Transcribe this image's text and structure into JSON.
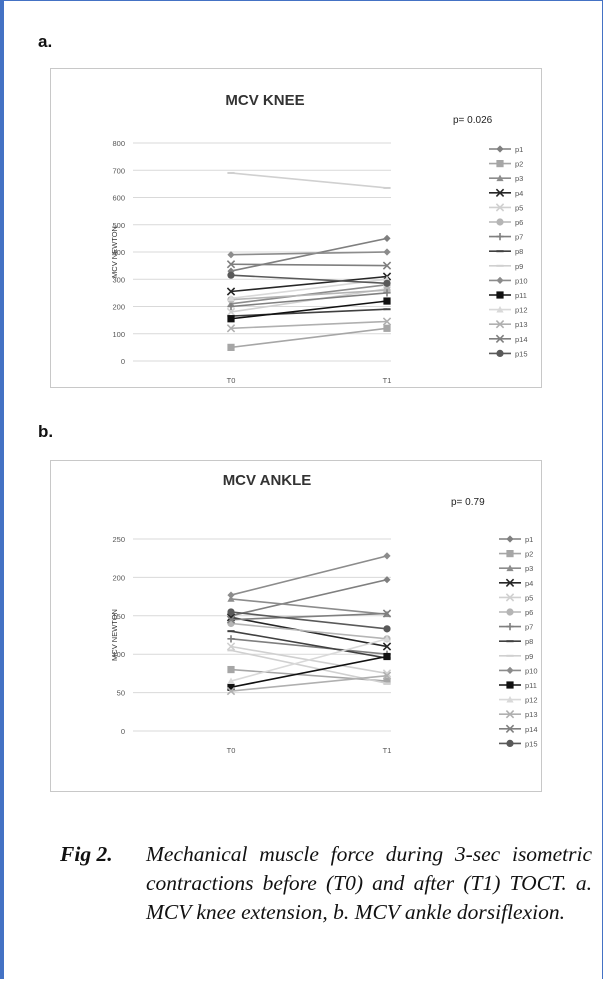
{
  "panels": {
    "a_label": "a.",
    "b_label": "b."
  },
  "caption": {
    "fig_label": "Fig 2.",
    "text": "Mechanical muscle force during 3-sec isometric contractions before (T0) and after (T1) TOCT. a. MCV knee extension, b. MCV ankle dorsiflexion."
  },
  "colors": {
    "border": "#4472c4",
    "grid": "#d9d9d9"
  },
  "chart_data": [
    {
      "type": "line",
      "title": "MCV KNEE",
      "annotation": "p= 0.026",
      "ylabel": "MCV NEWTON",
      "xlabel": "",
      "categories": [
        "T0",
        "T1"
      ],
      "ylim": [
        0,
        800
      ],
      "yticks": [
        "0",
        "100",
        "200",
        "300",
        "400",
        "500",
        "600",
        "700",
        "800"
      ],
      "grid": true,
      "legend": "right",
      "series": [
        {
          "name": "p1",
          "values": [
            330,
            450
          ],
          "color": "#7f7f7f",
          "marker": "diamond"
        },
        {
          "name": "p2",
          "values": [
            50,
            120
          ],
          "color": "#a6a6a6",
          "marker": "square"
        },
        {
          "name": "p3",
          "values": [
            210,
            280
          ],
          "color": "#8c8c8c",
          "marker": "triangle"
        },
        {
          "name": "p4",
          "values": [
            255,
            310
          ],
          "color": "#262626",
          "marker": "x"
        },
        {
          "name": "p5",
          "values": [
            180,
            265
          ],
          "color": "#d0d0d0",
          "marker": "x"
        },
        {
          "name": "p6",
          "values": [
            225,
            260
          ],
          "color": "#b5b5b5",
          "marker": "circle"
        },
        {
          "name": "p7",
          "values": [
            200,
            250
          ],
          "color": "#7f7f7f",
          "marker": "plus"
        },
        {
          "name": "p8",
          "values": [
            165,
            190
          ],
          "color": "#404040",
          "marker": "dash"
        },
        {
          "name": "p9",
          "values": [
            690,
            635
          ],
          "color": "#d0d0d0",
          "marker": "dash"
        },
        {
          "name": "p10",
          "values": [
            390,
            400
          ],
          "color": "#8c8c8c",
          "marker": "diamond"
        },
        {
          "name": "p11",
          "values": [
            155,
            220
          ],
          "color": "#111111",
          "marker": "square"
        },
        {
          "name": "p12",
          "values": [
            230,
            300
          ],
          "color": "#d9d9d9",
          "marker": "triangle"
        },
        {
          "name": "p13",
          "values": [
            120,
            145
          ],
          "color": "#b0b0b0",
          "marker": "x"
        },
        {
          "name": "p14",
          "values": [
            355,
            350
          ],
          "color": "#7f7f7f",
          "marker": "x"
        },
        {
          "name": "p15",
          "values": [
            315,
            285
          ],
          "color": "#595959",
          "marker": "circle"
        }
      ]
    },
    {
      "type": "line",
      "title": "MCV ANKLE",
      "annotation": "p= 0.79",
      "ylabel": "MCV NEWTON",
      "xlabel": "",
      "categories": [
        "T0",
        "T1"
      ],
      "ylim": [
        0,
        250
      ],
      "yticks": [
        "0",
        "50",
        "100",
        "150",
        "200",
        "250"
      ],
      "grid": true,
      "legend": "right",
      "series": [
        {
          "name": "p1",
          "values": [
            150,
            197
          ],
          "color": "#7f7f7f",
          "marker": "diamond"
        },
        {
          "name": "p2",
          "values": [
            80,
            65
          ],
          "color": "#a6a6a6",
          "marker": "square"
        },
        {
          "name": "p3",
          "values": [
            172,
            152
          ],
          "color": "#8c8c8c",
          "marker": "triangle"
        },
        {
          "name": "p4",
          "values": [
            148,
            110
          ],
          "color": "#262626",
          "marker": "x"
        },
        {
          "name": "p5",
          "values": [
            110,
            75
          ],
          "color": "#d0d0d0",
          "marker": "x"
        },
        {
          "name": "p6",
          "values": [
            140,
            120
          ],
          "color": "#b5b5b5",
          "marker": "circle"
        },
        {
          "name": "p7",
          "values": [
            120,
            100
          ],
          "color": "#7f7f7f",
          "marker": "plus"
        },
        {
          "name": "p8",
          "values": [
            130,
            95
          ],
          "color": "#404040",
          "marker": "dash"
        },
        {
          "name": "p9",
          "values": [
            105,
            62
          ],
          "color": "#d0d0d0",
          "marker": "dash"
        },
        {
          "name": "p10",
          "values": [
            177,
            228
          ],
          "color": "#8c8c8c",
          "marker": "diamond"
        },
        {
          "name": "p11",
          "values": [
            57,
            97
          ],
          "color": "#111111",
          "marker": "square"
        },
        {
          "name": "p12",
          "values": [
            65,
            120
          ],
          "color": "#d9d9d9",
          "marker": "triangle"
        },
        {
          "name": "p13",
          "values": [
            52,
            72
          ],
          "color": "#b0b0b0",
          "marker": "x"
        },
        {
          "name": "p14",
          "values": [
            145,
            153
          ],
          "color": "#7f7f7f",
          "marker": "x"
        },
        {
          "name": "p15",
          "values": [
            155,
            133
          ],
          "color": "#595959",
          "marker": "circle"
        }
      ]
    }
  ]
}
